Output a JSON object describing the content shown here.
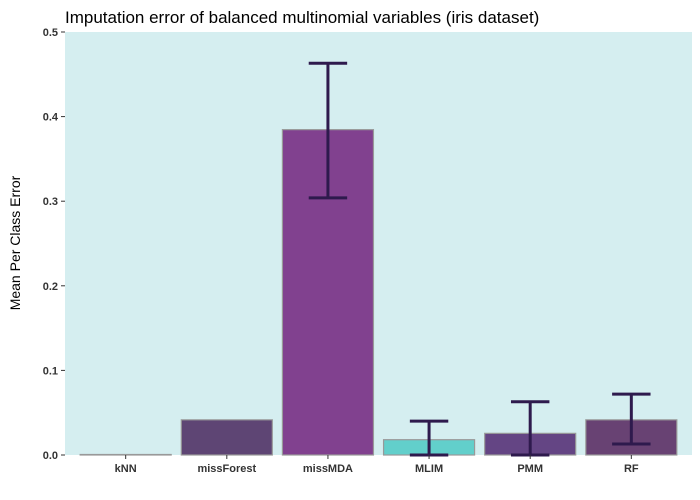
{
  "chart_data": {
    "type": "bar",
    "title": "Imputation error of balanced multinomial variables (iris dataset)",
    "xlabel": "",
    "ylabel": "Mean Per Class Error",
    "ylim": [
      0,
      0.5
    ],
    "yticks": [
      "0.0",
      "0.1",
      "0.2",
      "0.3",
      "0.4",
      "0.5"
    ],
    "grid": false,
    "background": "#d5eef0",
    "categories": [
      "kNN",
      "missForest",
      "missMDA",
      "MLIM",
      "PMM",
      "RF"
    ],
    "values": [
      0.0,
      0.041,
      0.384,
      0.0175,
      0.025,
      0.041
    ],
    "error_low": [
      null,
      null,
      0.304,
      0.0,
      0.0,
      0.013
    ],
    "error_high": [
      null,
      null,
      0.463,
      0.04,
      0.063,
      0.072
    ],
    "colors": [
      "#d5eef0",
      "#5e4574",
      "#81418f",
      "#62cfcb",
      "#644584",
      "#684273"
    ],
    "errorbar_color": "#2e1a4d"
  }
}
